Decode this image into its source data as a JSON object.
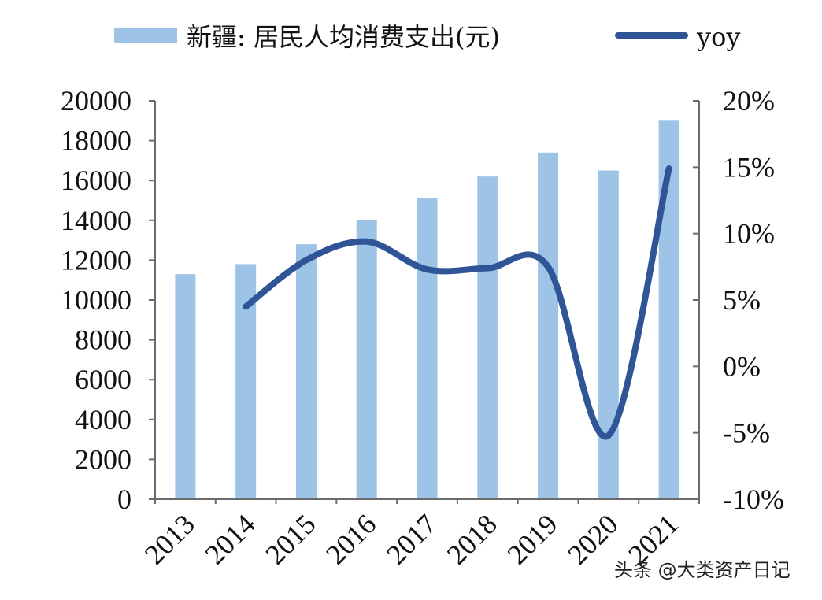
{
  "chart_data": {
    "type": "bar",
    "categories": [
      "2013",
      "2014",
      "2015",
      "2016",
      "2017",
      "2018",
      "2019",
      "2020",
      "2021"
    ],
    "series": [
      {
        "name": "新疆: 居民人均消费支出(元)",
        "type": "bar",
        "axis": "left",
        "color": "#9DC3E6",
        "values": [
          11300,
          11800,
          12800,
          14000,
          15100,
          16200,
          17400,
          16500,
          19000
        ]
      },
      {
        "name": "yoy",
        "type": "line",
        "axis": "right",
        "color": "#2F5597",
        "values": [
          null,
          4.5,
          8.0,
          9.4,
          7.3,
          7.4,
          7.5,
          -5.2,
          14.9
        ]
      }
    ],
    "ylim_left": [
      0,
      20000
    ],
    "yticks_left": [
      "0",
      "2000",
      "4000",
      "6000",
      "8000",
      "10000",
      "12000",
      "14000",
      "16000",
      "18000",
      "20000"
    ],
    "ylim_right": [
      -10,
      20
    ],
    "yticks_right": [
      "-10%",
      "-5%",
      "0%",
      "5%",
      "10%",
      "15%",
      "20%"
    ],
    "legend_position": "top",
    "grid": false
  },
  "watermark": "头条 @大类资产日记"
}
